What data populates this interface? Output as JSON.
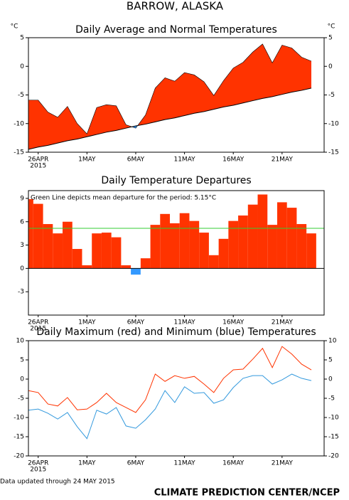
{
  "title": "BARROW, ALASKA",
  "footer_note": "Data updated through 24 MAY 2015",
  "footer_source": "CLIMATE PREDICTION CENTER/NCEP",
  "chart_data": [
    {
      "type": "area_difference",
      "title": "Daily Average and Normal Temperatures",
      "ylabel": "°C",
      "mirror_y_labels": true,
      "categories": [
        null,
        "26APR",
        null,
        null,
        null,
        null,
        "1MAY",
        null,
        null,
        null,
        null,
        "6MAY",
        null,
        null,
        null,
        null,
        "11MAY",
        null,
        null,
        null,
        null,
        "16MAY",
        null,
        null,
        null,
        null,
        "21MAY",
        null,
        null,
        null
      ],
      "first_label_year": "2015",
      "series": [
        {
          "color": "#ff3300",
          "below_color": "#3399ff",
          "values": [
            -5.9,
            -5.9,
            -8.0,
            -8.9,
            -7.0,
            -10.0,
            -11.8,
            -7.2,
            -6.7,
            -6.9,
            -10.2,
            -10.8,
            -8.5,
            -3.8,
            -2.0,
            -2.6,
            -1.1,
            -1.5,
            -2.7,
            -5.1,
            -2.5,
            -0.3,
            0.7,
            2.5,
            3.9,
            0.6,
            3.7,
            3.2,
            1.6,
            0.9
          ]
        },
        {
          "color": "#000000",
          "values": [
            -14.5,
            -14.1,
            -13.8,
            -13.4,
            -13.0,
            -12.7,
            -12.3,
            -11.9,
            -11.5,
            -11.2,
            -10.8,
            -10.4,
            -10.1,
            -9.7,
            -9.3,
            -9.0,
            -8.6,
            -8.2,
            -7.9,
            -7.5,
            -7.1,
            -6.8,
            -6.4,
            -6.0,
            -5.6,
            -5.3,
            -4.9,
            -4.5,
            -4.2,
            -3.8
          ]
        }
      ],
      "ylim": [
        -15,
        5
      ],
      "yticks": [
        -15,
        -10,
        -5,
        0,
        5
      ]
    },
    {
      "type": "bar",
      "title": "Daily Temperature Departures",
      "mirror_y_labels": false,
      "categories": [
        null,
        "26APR",
        null,
        null,
        null,
        null,
        "1MAY",
        null,
        null,
        null,
        null,
        "6MAY",
        null,
        null,
        null,
        null,
        "11MAY",
        null,
        null,
        null,
        null,
        "16MAY",
        null,
        null,
        null,
        null,
        "21MAY",
        null,
        null,
        null
      ],
      "first_label_year": "2015",
      "values": [
        8.9,
        8.3,
        5.7,
        4.5,
        6.0,
        2.5,
        0.4,
        4.5,
        4.6,
        4.0,
        0.4,
        -0.8,
        1.3,
        5.6,
        7.0,
        5.8,
        7.1,
        6.1,
        4.6,
        1.7,
        3.8,
        6.1,
        6.8,
        8.2,
        9.5,
        5.6,
        8.5,
        7.8,
        5.7,
        4.5
      ],
      "color": "#ff3300",
      "negative_color": "#3399ff",
      "mean_departure": 5.15,
      "mean_color": "#33cc33",
      "annotation": "Green Line depicts mean departure for the period: 5.15°C",
      "ylim": [
        -6,
        10
      ],
      "yticks": [
        -3,
        0,
        3,
        6,
        9
      ]
    },
    {
      "type": "line",
      "title": "Daily Maximum (red) and Minimum (blue) Temperatures",
      "mirror_y_labels": true,
      "categories": [
        null,
        "26APR",
        null,
        null,
        null,
        null,
        "1MAY",
        null,
        null,
        null,
        null,
        "6MAY",
        null,
        null,
        null,
        null,
        "11MAY",
        null,
        null,
        null,
        null,
        "16MAY",
        null,
        null,
        null,
        null,
        "21MAY",
        null,
        null,
        null
      ],
      "first_label_year": "2015",
      "series": [
        {
          "color": "#ff3300",
          "values": [
            -3.0,
            -3.5,
            -6.5,
            -7.0,
            -4.8,
            -8.0,
            -7.8,
            -6.1,
            -3.7,
            -6.1,
            -7.4,
            -8.7,
            -5.4,
            1.3,
            -0.6,
            0.9,
            0.2,
            0.7,
            -1.3,
            -3.5,
            0.2,
            2.4,
            2.6,
            5.2,
            8.0,
            3.0,
            8.5,
            6.5,
            3.9,
            2.4
          ]
        },
        {
          "color": "#3399dd",
          "values": [
            -8.1,
            -7.8,
            -8.9,
            -10.4,
            -8.7,
            -12.4,
            -15.5,
            -8.1,
            -9.1,
            -7.4,
            -12.2,
            -12.8,
            -10.6,
            -7.8,
            -3.0,
            -6.1,
            -2.0,
            -3.7,
            -3.5,
            -6.3,
            -5.4,
            -2.2,
            0.2,
            0.9,
            0.9,
            -1.3,
            -0.2,
            1.3,
            0.2,
            -0.4
          ]
        }
      ],
      "ylim": [
        -20,
        10
      ],
      "yticks": [
        -20,
        -15,
        -10,
        -5,
        0,
        5,
        10
      ]
    }
  ]
}
